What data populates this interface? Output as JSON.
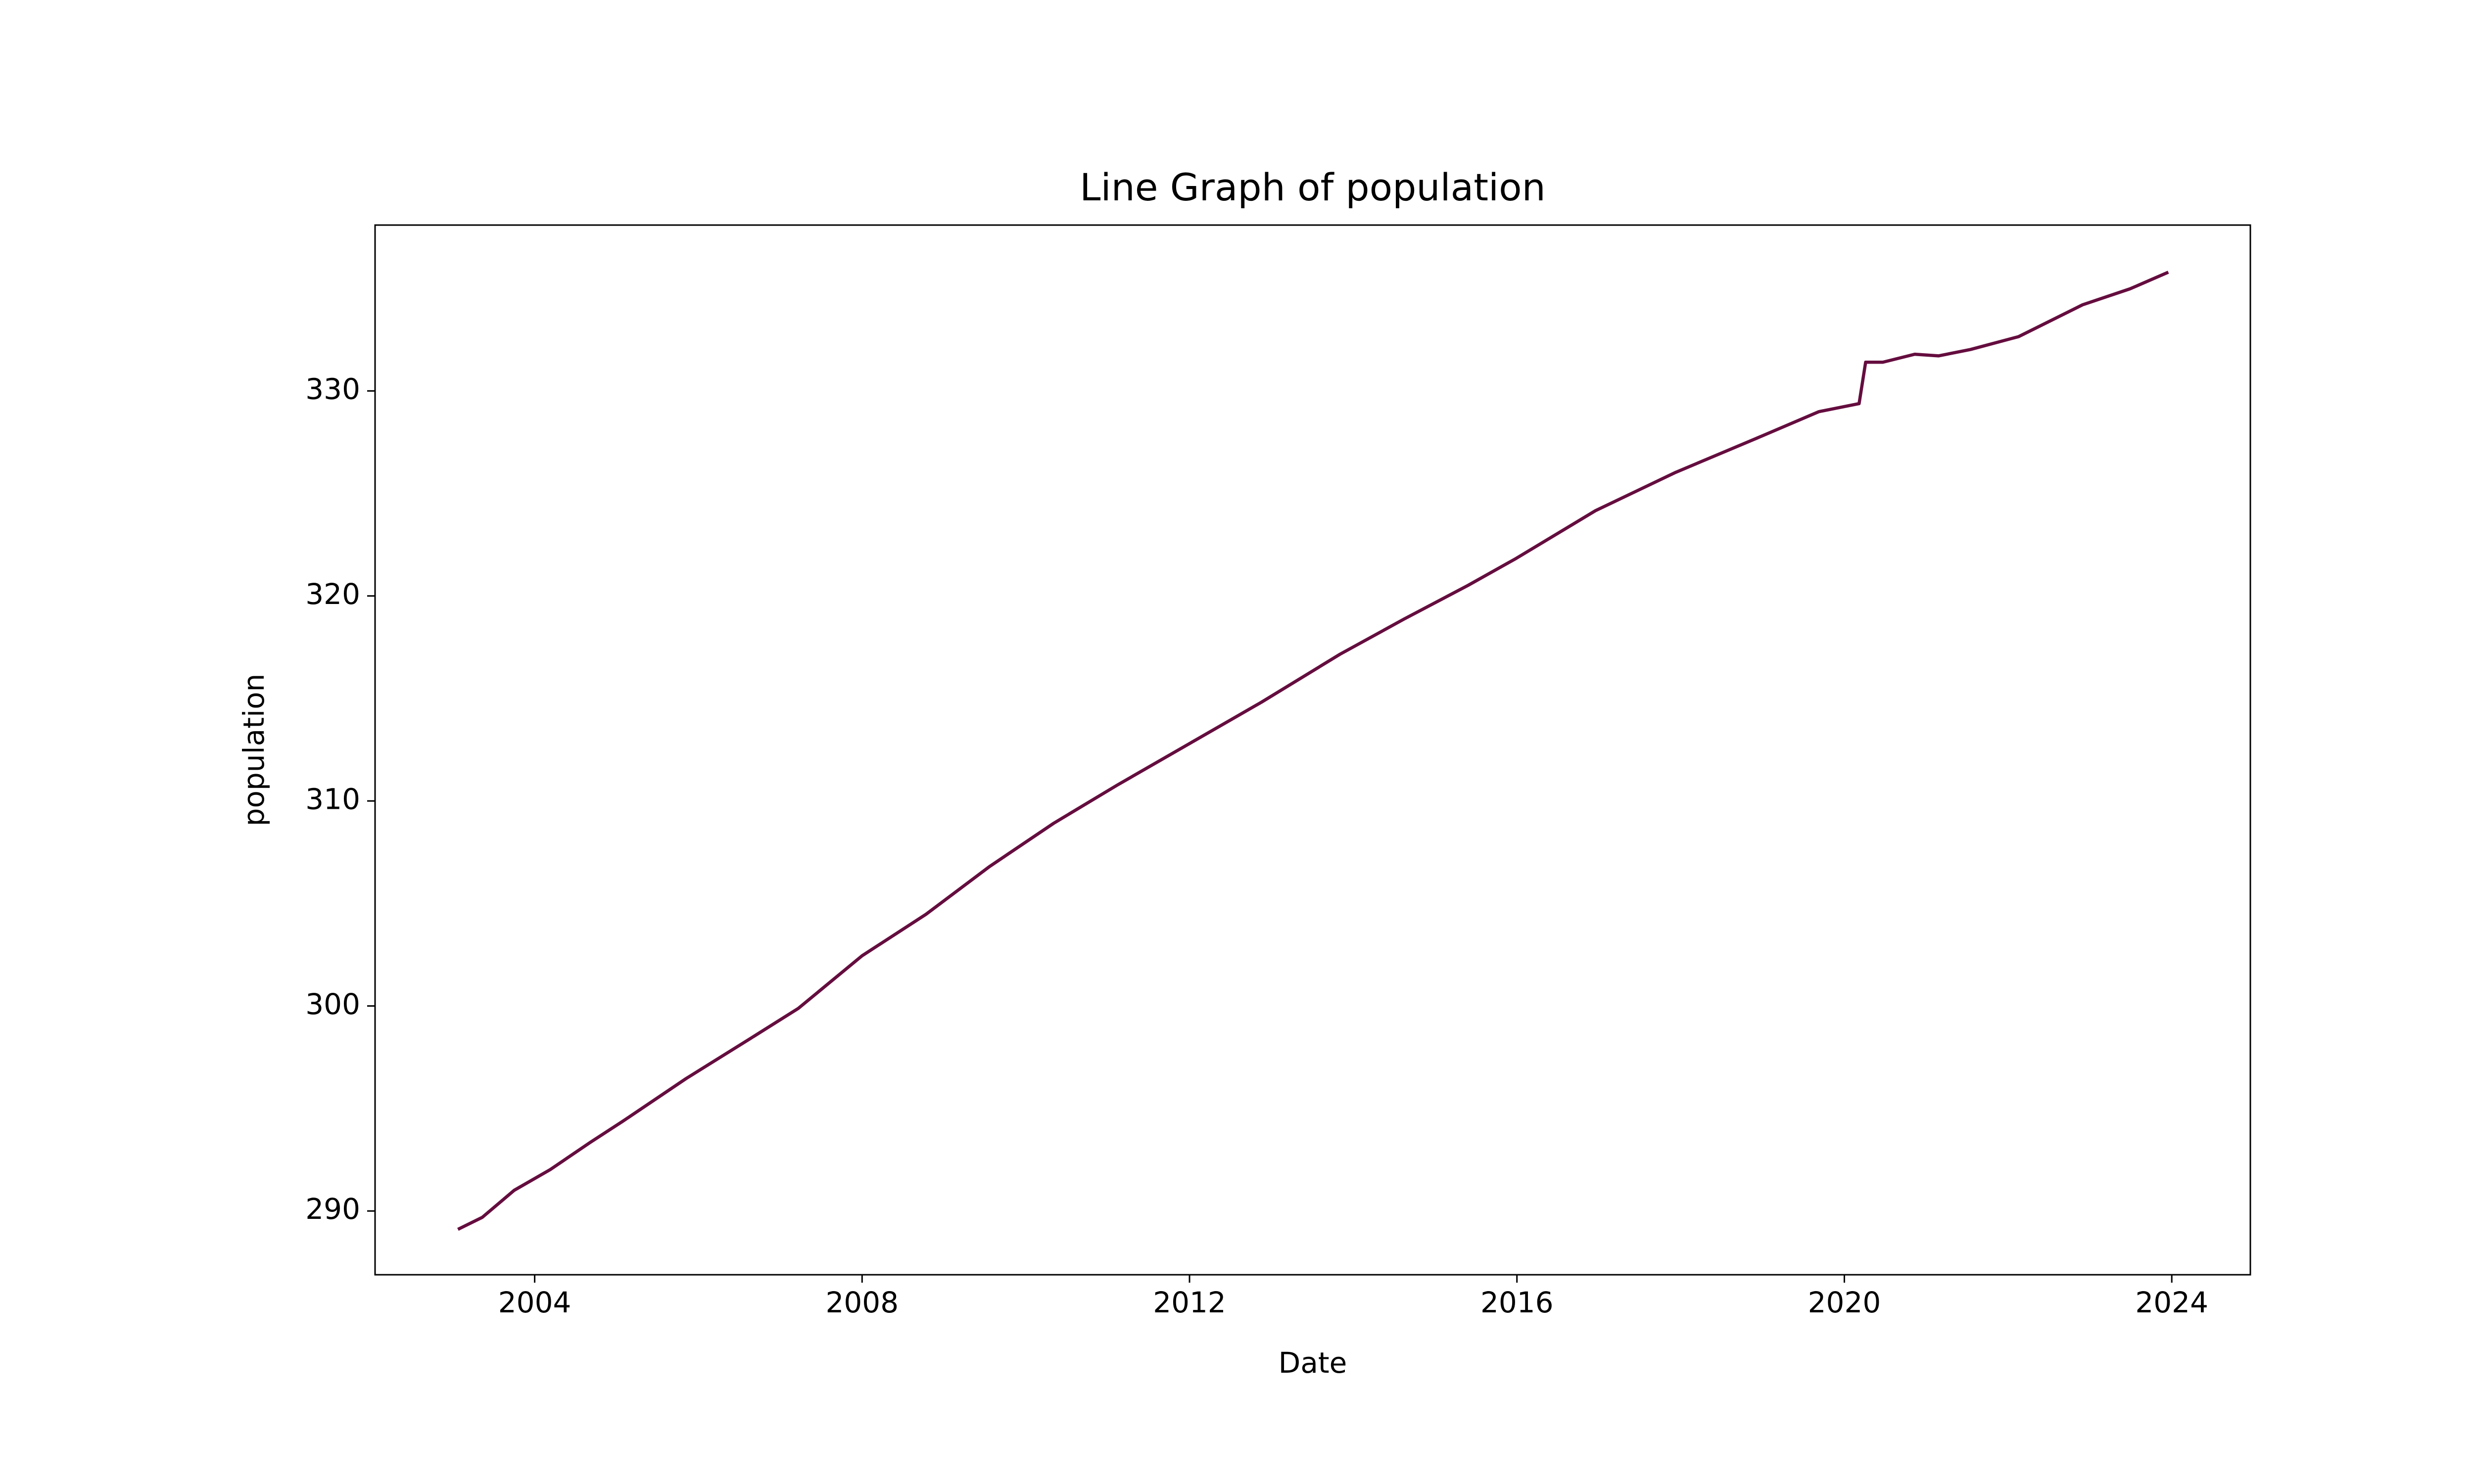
{
  "chart_data": {
    "type": "line",
    "title": "Line Graph of population",
    "x_label": "Date",
    "y_label": "population",
    "x": [
      2003.08,
      2003.36,
      2003.75,
      2004.19,
      2004.68,
      2005.07,
      2005.85,
      2006.63,
      2007.22,
      2008.0,
      2008.78,
      2009.56,
      2010.34,
      2011.12,
      2012.0,
      2012.88,
      2013.84,
      2014.62,
      2015.4,
      2015.99,
      2016.96,
      2017.94,
      2018.91,
      2019.69,
      2020.18,
      2020.26,
      2020.47,
      2020.86,
      2021.15,
      2021.54,
      2022.13,
      2022.91,
      2023.49,
      2023.94
    ],
    "series": [
      {
        "name": "population",
        "color": "#650d3f",
        "values": [
          289.14,
          289.69,
          291.01,
          292.02,
          293.35,
          294.36,
          296.46,
          298.4,
          299.88,
          302.45,
          304.47,
          306.81,
          308.91,
          310.78,
          312.8,
          314.82,
          317.16,
          318.87,
          320.51,
          321.83,
          324.16,
          326.03,
          327.66,
          328.99,
          329.38,
          331.4,
          331.4,
          331.79,
          331.71,
          332.02,
          332.65,
          334.2,
          334.98,
          335.76
        ]
      }
    ],
    "xlim": [
      2002.05,
      2024.96
    ],
    "xticks": [
      2004,
      2008,
      2012,
      2016,
      2020,
      2024
    ],
    "ylim": [
      286.89,
      338.09
    ],
    "yticks": [
      290,
      300,
      310,
      320,
      330
    ]
  }
}
